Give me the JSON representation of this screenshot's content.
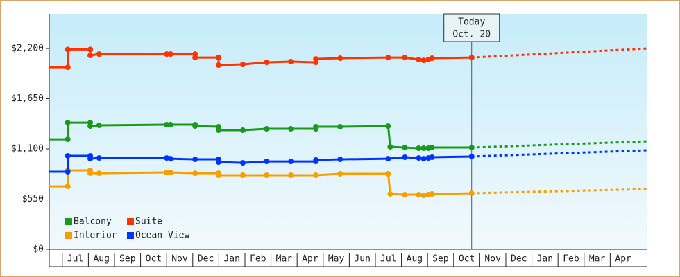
{
  "chart_data": {
    "type": "line",
    "categories": [
      null,
      "Jul",
      "Aug",
      "Sep",
      "Oct",
      "Nov",
      "Dec",
      "Jan",
      "Feb",
      "Mar",
      "Apr",
      "May",
      "Jun",
      "Jul",
      "Aug",
      "Sep",
      "Oct",
      "Nov",
      "Dec",
      "Jan",
      "Feb",
      "Mar",
      "Apr"
    ],
    "xlim": [
      0.5,
      23.4
    ],
    "ylim": [
      0,
      2580
    ],
    "yticks": [
      {
        "value": 0,
        "label": "$0"
      },
      {
        "value": 550,
        "label": "$550"
      },
      {
        "value": 1100,
        "label": "$1,100"
      },
      {
        "value": 1650,
        "label": "$1,650"
      },
      {
        "value": 2200,
        "label": "$2,200"
      }
    ],
    "grid": false,
    "legend": "lower left",
    "annotation": {
      "x": 16.69,
      "text": [
        "Today",
        "Oct. 20"
      ]
    },
    "series": [
      {
        "name": "Balcony",
        "color": "#1a9a1a",
        "x": [
          0.5,
          1.21,
          1.21,
          2.07,
          2.07,
          2.41,
          5.0,
          5.15,
          6.09,
          6.09,
          6.99,
          6.99,
          7.92,
          8.83,
          9.76,
          10.72,
          10.72,
          11.65,
          13.49,
          13.57,
          14.13,
          14.66,
          14.85,
          15.03,
          15.17,
          16.69
        ],
        "values": [
          1206,
          1206,
          1388,
          1388,
          1350,
          1358,
          1366,
          1366,
          1366,
          1350,
          1343,
          1305,
          1305,
          1320,
          1320,
          1320,
          1343,
          1343,
          1350,
          1123,
          1115,
          1108,
          1108,
          1108,
          1115,
          1115
        ],
        "forecast": {
          "x": [
            16.69,
            23.4
          ],
          "values": [
            1115,
            1183
          ]
        }
      },
      {
        "name": "Suite",
        "color": "#ff3300",
        "x": [
          0.5,
          1.21,
          1.21,
          2.07,
          2.07,
          2.41,
          5.0,
          5.15,
          6.09,
          6.09,
          6.99,
          6.99,
          7.92,
          8.83,
          9.76,
          10.72,
          10.72,
          11.65,
          13.49,
          14.13,
          14.66,
          14.85,
          15.03,
          15.17,
          16.69
        ],
        "values": [
          1995,
          1995,
          2190,
          2190,
          2124,
          2139,
          2139,
          2139,
          2139,
          2101,
          2101,
          2018,
          2026,
          2048,
          2056,
          2048,
          2086,
          2094,
          2101,
          2101,
          2079,
          2071,
          2079,
          2094,
          2101
        ],
        "forecast": {
          "x": [
            16.69,
            23.4
          ],
          "values": [
            2101,
            2200
          ]
        }
      },
      {
        "name": "Interior",
        "color": "#f5a000",
        "x": [
          0.5,
          1.21,
          1.21,
          2.07,
          2.07,
          2.41,
          5.0,
          5.15,
          6.09,
          6.99,
          6.99,
          7.92,
          8.83,
          9.76,
          10.72,
          11.65,
          13.49,
          13.57,
          14.13,
          14.66,
          14.85,
          15.03,
          15.17,
          16.69
        ],
        "values": [
          690,
          690,
          865,
          865,
          834,
          834,
          842,
          842,
          834,
          834,
          812,
          812,
          812,
          812,
          812,
          827,
          827,
          607,
          599,
          599,
          592,
          599,
          607,
          614
        ],
        "forecast": {
          "x": [
            16.69,
            23.4
          ],
          "values": [
            614,
            660
          ]
        }
      },
      {
        "name": "Ocean View",
        "color": "#0033ff",
        "x": [
          0.5,
          1.21,
          1.21,
          2.07,
          2.07,
          2.41,
          5.0,
          5.15,
          6.09,
          6.99,
          6.99,
          7.92,
          8.83,
          9.76,
          10.72,
          10.72,
          11.65,
          13.49,
          14.13,
          14.66,
          14.85,
          15.03,
          15.17,
          16.69
        ],
        "values": [
          850,
          850,
          1024,
          1024,
          993,
          1001,
          1001,
          993,
          986,
          986,
          956,
          948,
          963,
          963,
          963,
          979,
          986,
          993,
          1009,
          1001,
          993,
          1001,
          1009,
          1017
        ],
        "forecast": {
          "x": [
            16.69,
            23.4
          ],
          "values": [
            1017,
            1085
          ]
        }
      }
    ]
  }
}
